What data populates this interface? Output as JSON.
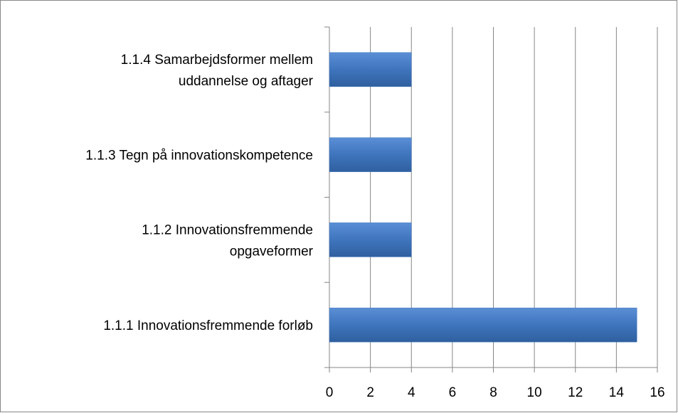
{
  "chart_data": {
    "type": "bar",
    "orientation": "horizontal",
    "categories": [
      "1.1.1 Innovationsfremmende forløb",
      "1.1.2 Innovationsfremmende\nopgaveformer",
      "1.1.3 Tegn på innovationskompetence",
      "1.1.4 Samarbejdsformer mellem\nuddannelse og aftager"
    ],
    "values": [
      15,
      4,
      4,
      4
    ],
    "color": "#3f75bd",
    "xlim": [
      0,
      16
    ],
    "xticks": [
      0,
      2,
      4,
      6,
      8,
      10,
      12,
      14,
      16
    ],
    "grid": true
  }
}
